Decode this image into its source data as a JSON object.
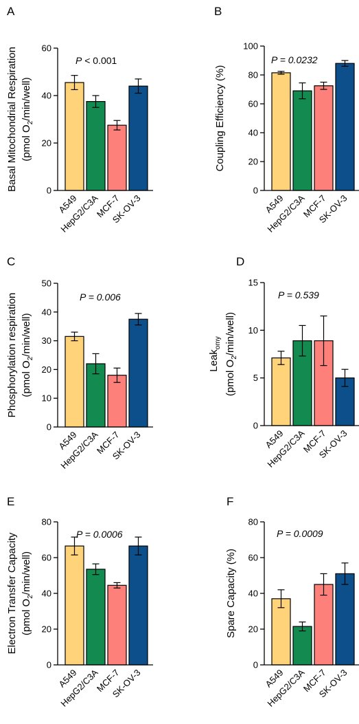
{
  "chart_data": [
    {
      "panel": "A",
      "type": "bar",
      "categories": [
        "A549",
        "HepG2/C3A",
        "MCF-7",
        "SK-OV-3"
      ],
      "values": [
        45.5,
        37.5,
        27.5,
        44
      ],
      "errors": [
        3,
        2.5,
        2,
        3
      ],
      "ylabel_line1": "Basal Mitochondrial Respiration",
      "ylabel_line2_parts": [
        "(pmol O",
        "2",
        "/min/well)"
      ],
      "annotation": {
        "italic": "P",
        "rest": " < 0.001"
      },
      "ylim": [
        0,
        60
      ],
      "yticks": [
        "0",
        "20",
        "40",
        "60"
      ],
      "colors": [
        "#ffd37a",
        "#138a4f",
        "#fd807a",
        "#0c4f8a"
      ]
    },
    {
      "panel": "B",
      "type": "bar",
      "categories": [
        "A549",
        "HepG2/C3A",
        "MCF-7",
        "SK-OV-3"
      ],
      "values": [
        81.5,
        69,
        72.5,
        88
      ],
      "errors": [
        1,
        5.5,
        2.5,
        2
      ],
      "ylabel_line1": "Coupling Efficiency (%)",
      "ylabel_line2_parts": [],
      "annotation": {
        "italic": "P = 0.0232",
        "rest": ""
      },
      "ylim": [
        0,
        100
      ],
      "yticks": [
        "0",
        "20",
        "40",
        "60",
        "80",
        "100"
      ],
      "colors": [
        "#ffd37a",
        "#138a4f",
        "#fd807a",
        "#0c4f8a"
      ]
    },
    {
      "panel": "C",
      "type": "bar",
      "categories": [
        "A549",
        "HepG2/C3A",
        "MCF-7",
        "SK-OV-3"
      ],
      "values": [
        31.5,
        22,
        18,
        37.5
      ],
      "errors": [
        1.5,
        3.5,
        2.5,
        2
      ],
      "ylabel_line1": "Phosphorylation respiration",
      "ylabel_line2_parts": [
        "(pmol O",
        "2",
        "/min/well)"
      ],
      "annotation": {
        "italic": "P = 0.006",
        "rest": ""
      },
      "ylim": [
        0,
        50
      ],
      "yticks": [
        "0",
        "10",
        "20",
        "30",
        "40",
        "50"
      ],
      "colors": [
        "#ffd37a",
        "#138a4f",
        "#fd807a",
        "#0c4f8a"
      ]
    },
    {
      "panel": "D",
      "type": "bar",
      "categories": [
        "A549",
        "HepG2/C3A",
        "MCF-7",
        "SK-OV-3"
      ],
      "values": [
        7.1,
        8.9,
        8.9,
        5
      ],
      "errors": [
        0.7,
        1.6,
        2.6,
        0.9
      ],
      "ylabel_line1_parts": [
        "Leak",
        "omy"
      ],
      "ylabel_line2_parts": [
        "(pmol O",
        "2",
        "/min/well)"
      ],
      "annotation": {
        "italic": "P = 0.539",
        "rest": ""
      },
      "ylim": [
        0,
        15
      ],
      "yticks": [
        "0",
        "5",
        "10",
        "15"
      ],
      "colors": [
        "#ffd37a",
        "#138a4f",
        "#fd807a",
        "#0c4f8a"
      ]
    },
    {
      "panel": "E",
      "type": "bar",
      "categories": [
        "A549",
        "HepG2/C3A",
        "MCF-7",
        "SK-OV-3"
      ],
      "values": [
        66.5,
        53.5,
        44.5,
        66.5
      ],
      "errors": [
        5,
        3,
        1.5,
        5
      ],
      "ylabel_line1": "Electron Transfer Capacity",
      "ylabel_line2_parts": [
        "(pmol O",
        "2",
        "/min/well)"
      ],
      "annotation": {
        "italic": "P = 0.0006",
        "rest": ""
      },
      "ylim": [
        0,
        80
      ],
      "yticks": [
        "0",
        "20",
        "40",
        "60",
        "80"
      ],
      "colors": [
        "#ffd37a",
        "#138a4f",
        "#fd807a",
        "#0c4f8a"
      ]
    },
    {
      "panel": "F",
      "type": "bar",
      "categories": [
        "A549",
        "HepG2/C3A",
        "MCF-7",
        "SK-OV-3"
      ],
      "values": [
        37,
        21.5,
        45,
        51
      ],
      "errors": [
        5,
        2.5,
        6,
        6
      ],
      "ylabel_line1": "Spare Capacity (%)",
      "ylabel_line2_parts": [],
      "annotation": {
        "italic": "P = 0.0009",
        "rest": ""
      },
      "ylim": [
        0,
        80
      ],
      "yticks": [
        "0",
        "20",
        "40",
        "60",
        "80"
      ],
      "colors": [
        "#ffd37a",
        "#138a4f",
        "#fd807a",
        "#0c4f8a"
      ]
    }
  ]
}
